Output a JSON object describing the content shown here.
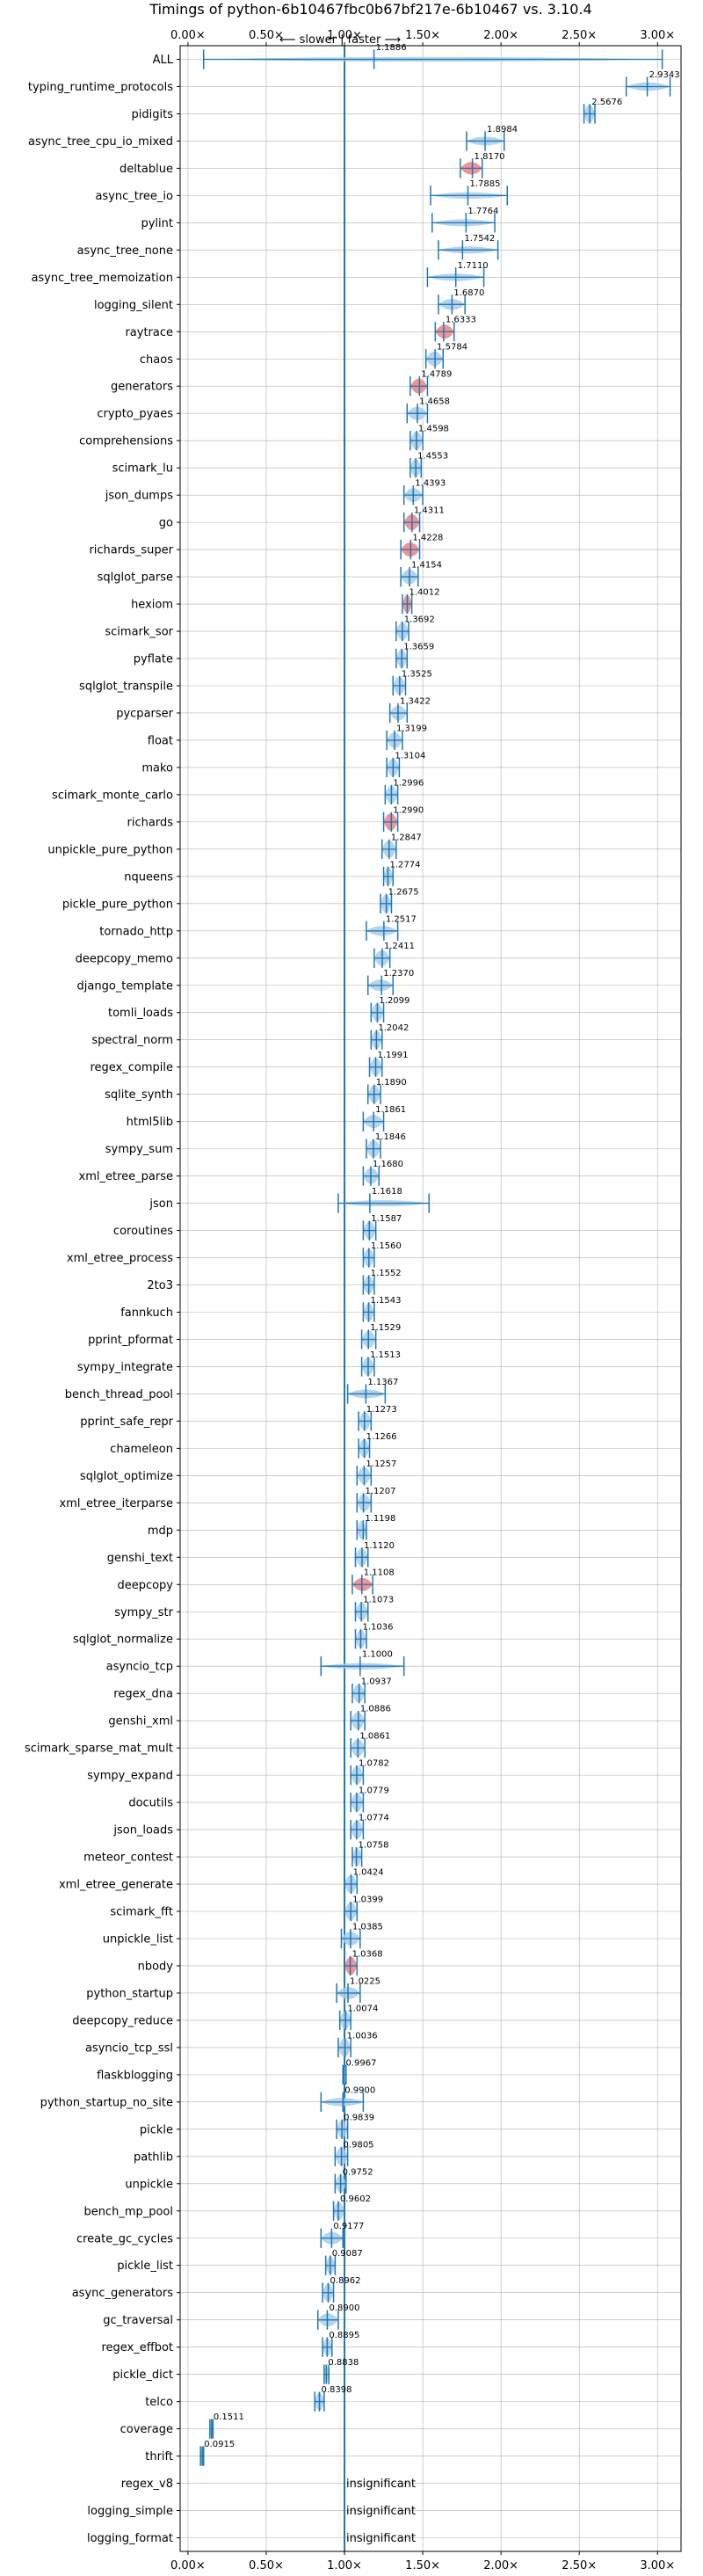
{
  "chart_data": {
    "type": "violin",
    "title": "Timings of python-6b10467fbc0b67bf217e-6b10467 vs. 3.10.4",
    "direction_label": "⟵ slower | faster ⟶",
    "x_tick_labels": [
      "0.00×",
      "0.50×",
      "1.00×",
      "1.50×",
      "2.00×",
      "2.50×",
      "3.00×"
    ],
    "x_ticks": [
      0,
      0.5,
      1.0,
      1.5,
      2.0,
      2.5,
      3.0
    ],
    "xlim": [
      -0.05,
      3.15
    ],
    "reference_line": 1.0,
    "grid": true,
    "insignificant_label": "insignificant",
    "colors": {
      "violin": "#a8cbe8",
      "line": "#1f77b4",
      "highlight": "#f08080",
      "grid": "#b0b0b0"
    },
    "categories": [
      "ALL",
      "typing_runtime_protocols",
      "pidigits",
      "async_tree_cpu_io_mixed",
      "deltablue",
      "async_tree_io",
      "pylint",
      "async_tree_none",
      "async_tree_memoization",
      "logging_silent",
      "raytrace",
      "chaos",
      "generators",
      "crypto_pyaes",
      "comprehensions",
      "scimark_lu",
      "json_dumps",
      "go",
      "richards_super",
      "sqlglot_parse",
      "hexiom",
      "scimark_sor",
      "pyflate",
      "sqlglot_transpile",
      "pycparser",
      "float",
      "mako",
      "scimark_monte_carlo",
      "richards",
      "unpickle_pure_python",
      "nqueens",
      "pickle_pure_python",
      "tornado_http",
      "deepcopy_memo",
      "django_template",
      "tomli_loads",
      "spectral_norm",
      "regex_compile",
      "sqlite_synth",
      "html5lib",
      "sympy_sum",
      "xml_etree_parse",
      "json",
      "coroutines",
      "xml_etree_process",
      "2to3",
      "fannkuch",
      "pprint_pformat",
      "sympy_integrate",
      "bench_thread_pool",
      "pprint_safe_repr",
      "chameleon",
      "sqlglot_optimize",
      "xml_etree_iterparse",
      "mdp",
      "genshi_text",
      "deepcopy",
      "sympy_str",
      "sqlglot_normalize",
      "asyncio_tcp",
      "regex_dna",
      "genshi_xml",
      "scimark_sparse_mat_mult",
      "sympy_expand",
      "docutils",
      "json_loads",
      "meteor_contest",
      "xml_etree_generate",
      "scimark_fft",
      "unpickle_list",
      "nbody",
      "python_startup",
      "deepcopy_reduce",
      "asyncio_tcp_ssl",
      "flaskblogging",
      "python_startup_no_site",
      "pickle",
      "pathlib",
      "unpickle",
      "bench_mp_pool",
      "create_gc_cycles",
      "pickle_list",
      "async_generators",
      "gc_traversal",
      "regex_effbot",
      "pickle_dict",
      "telco",
      "coverage",
      "thrift",
      "regex_v8",
      "logging_simple",
      "logging_format"
    ],
    "values": [
      1.1886,
      2.9343,
      2.5676,
      1.8984,
      1.817,
      1.7885,
      1.7764,
      1.7542,
      1.711,
      1.687,
      1.6333,
      1.5784,
      1.4789,
      1.4658,
      1.4598,
      1.4553,
      1.4393,
      1.4311,
      1.4228,
      1.4154,
      1.4012,
      1.3692,
      1.3659,
      1.3525,
      1.3422,
      1.3199,
      1.3104,
      1.2996,
      1.299,
      1.2847,
      1.2774,
      1.2675,
      1.2517,
      1.2411,
      1.237,
      1.2099,
      1.2042,
      1.1991,
      1.189,
      1.1861,
      1.1846,
      1.168,
      1.1618,
      1.1587,
      1.156,
      1.1552,
      1.1543,
      1.1529,
      1.1513,
      1.1367,
      1.1273,
      1.1266,
      1.1257,
      1.1207,
      1.1198,
      1.112,
      1.1108,
      1.1073,
      1.1036,
      1.1,
      1.0937,
      1.0886,
      1.0861,
      1.0782,
      1.0779,
      1.0774,
      1.0758,
      1.0424,
      1.0399,
      1.0385,
      1.0368,
      1.0225,
      1.0074,
      1.0036,
      0.9967,
      0.99,
      0.9839,
      0.9805,
      0.9752,
      0.9602,
      0.9177,
      0.9087,
      0.8962,
      0.89,
      0.8895,
      0.8838,
      0.8398,
      0.1511,
      0.0915,
      null,
      null,
      null
    ],
    "value_labels": [
      "1.1886",
      "2.9343",
      "2.5676",
      "1.8984",
      "1.8170",
      "1.7885",
      "1.7764",
      "1.7542",
      "1.7110",
      "1.6870",
      "1.6333",
      "1.5784",
      "1.4789",
      "1.4658",
      "1.4598",
      "1.4553",
      "1.4393",
      "1.4311",
      "1.4228",
      "1.4154",
      "1.4012",
      "1.3692",
      "1.3659",
      "1.3525",
      "1.3422",
      "1.3199",
      "1.3104",
      "1.2996",
      "1.2990",
      "1.2847",
      "1.2774",
      "1.2675",
      "1.2517",
      "1.2411",
      "1.2370",
      "1.2099",
      "1.2042",
      "1.1991",
      "1.1890",
      "1.1861",
      "1.1846",
      "1.1680",
      "1.1618",
      "1.1587",
      "1.1560",
      "1.1552",
      "1.1543",
      "1.1529",
      "1.1513",
      "1.1367",
      "1.1273",
      "1.1266",
      "1.1257",
      "1.1207",
      "1.1198",
      "1.1120",
      "1.1108",
      "1.1073",
      "1.1036",
      "1.1000",
      "1.0937",
      "1.0886",
      "1.0861",
      "1.0782",
      "1.0779",
      "1.0774",
      "1.0758",
      "1.0424",
      "1.0399",
      "1.0385",
      "1.0368",
      "1.0225",
      "1.0074",
      "1.0036",
      "0.9967",
      "0.9900",
      "0.9839",
      "0.9805",
      "0.9752",
      "0.9602",
      "0.9177",
      "0.9087",
      "0.8962",
      "0.8900",
      "0.8895",
      "0.8838",
      "0.8398",
      "0.1511",
      "0.0915",
      "",
      "",
      ""
    ],
    "ranges": [
      [
        0.1,
        3.03
      ],
      [
        2.8,
        3.08
      ],
      [
        2.53,
        2.6
      ],
      [
        1.78,
        2.02
      ],
      [
        1.74,
        1.88
      ],
      [
        1.55,
        2.04
      ],
      [
        1.56,
        1.96
      ],
      [
        1.6,
        1.98
      ],
      [
        1.53,
        1.89
      ],
      [
        1.6,
        1.77
      ],
      [
        1.58,
        1.7
      ],
      [
        1.52,
        1.63
      ],
      [
        1.42,
        1.53
      ],
      [
        1.4,
        1.53
      ],
      [
        1.42,
        1.5
      ],
      [
        1.42,
        1.49
      ],
      [
        1.38,
        1.5
      ],
      [
        1.38,
        1.48
      ],
      [
        1.36,
        1.48
      ],
      [
        1.36,
        1.47
      ],
      [
        1.37,
        1.43
      ],
      [
        1.33,
        1.41
      ],
      [
        1.33,
        1.4
      ],
      [
        1.31,
        1.39
      ],
      [
        1.29,
        1.4
      ],
      [
        1.27,
        1.37
      ],
      [
        1.27,
        1.35
      ],
      [
        1.26,
        1.34
      ],
      [
        1.25,
        1.34
      ],
      [
        1.24,
        1.33
      ],
      [
        1.25,
        1.31
      ],
      [
        1.23,
        1.3
      ],
      [
        1.14,
        1.34
      ],
      [
        1.19,
        1.29
      ],
      [
        1.15,
        1.31
      ],
      [
        1.17,
        1.25
      ],
      [
        1.17,
        1.24
      ],
      [
        1.16,
        1.24
      ],
      [
        1.15,
        1.23
      ],
      [
        1.12,
        1.25
      ],
      [
        1.14,
        1.23
      ],
      [
        1.12,
        1.22
      ],
      [
        0.96,
        1.54
      ],
      [
        1.12,
        1.2
      ],
      [
        1.12,
        1.19
      ],
      [
        1.12,
        1.19
      ],
      [
        1.12,
        1.19
      ],
      [
        1.11,
        1.2
      ],
      [
        1.11,
        1.19
      ],
      [
        1.02,
        1.26
      ],
      [
        1.09,
        1.17
      ],
      [
        1.09,
        1.16
      ],
      [
        1.08,
        1.17
      ],
      [
        1.08,
        1.17
      ],
      [
        1.08,
        1.14
      ],
      [
        1.07,
        1.15
      ],
      [
        1.05,
        1.18
      ],
      [
        1.07,
        1.15
      ],
      [
        1.07,
        1.14
      ],
      [
        0.85,
        1.38
      ],
      [
        1.05,
        1.13
      ],
      [
        1.04,
        1.13
      ],
      [
        1.04,
        1.13
      ],
      [
        1.04,
        1.12
      ],
      [
        1.04,
        1.12
      ],
      [
        1.04,
        1.12
      ],
      [
        1.05,
        1.11
      ],
      [
        1.0,
        1.08
      ],
      [
        1.0,
        1.08
      ],
      [
        0.98,
        1.1
      ],
      [
        1.0,
        1.08
      ],
      [
        0.95,
        1.1
      ],
      [
        0.97,
        1.04
      ],
      [
        0.96,
        1.04
      ],
      [
        0.99,
        1.01
      ],
      [
        0.85,
        1.12
      ],
      [
        0.95,
        1.02
      ],
      [
        0.94,
        1.02
      ],
      [
        0.94,
        1.01
      ],
      [
        0.93,
        1.0
      ],
      [
        0.85,
        0.99
      ],
      [
        0.88,
        0.94
      ],
      [
        0.86,
        0.93
      ],
      [
        0.83,
        0.96
      ],
      [
        0.86,
        0.92
      ],
      [
        0.87,
        0.9
      ],
      [
        0.81,
        0.87
      ],
      [
        0.14,
        0.16
      ],
      [
        0.08,
        0.1
      ],
      null,
      null,
      null
    ],
    "highlighted": [
      "deltablue",
      "raytrace",
      "generators",
      "go",
      "richards_super",
      "hexiom",
      "richards",
      "deepcopy",
      "nbody"
    ]
  }
}
